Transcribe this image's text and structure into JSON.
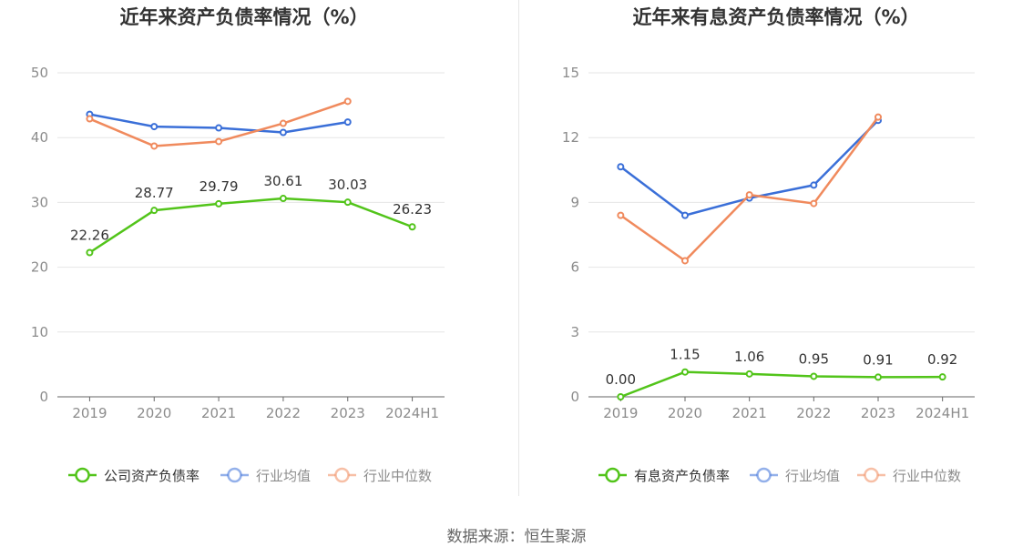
{
  "source": "数据来源：恒生聚源",
  "chart_data": [
    {
      "type": "line",
      "title": "近年来资产负债率情况（%）",
      "categories": [
        "2019",
        "2020",
        "2021",
        "2022",
        "2023",
        "2024H1"
      ],
      "ylim": [
        0,
        50
      ],
      "yticks": [
        0,
        10,
        20,
        30,
        40,
        50
      ],
      "grid": true,
      "legend_position": "bottom",
      "series": [
        {
          "name": "公司资产负债率",
          "color": "#52c41a",
          "values": [
            22.26,
            28.77,
            29.79,
            30.61,
            30.03,
            26.23
          ],
          "labels": [
            "22.26",
            "28.77",
            "29.79",
            "30.61",
            "30.03",
            "26.23"
          ]
        },
        {
          "name": "行业均值",
          "color": "#3a6fd8",
          "values": [
            43.6,
            41.7,
            41.5,
            40.8,
            42.4,
            null
          ]
        },
        {
          "name": "行业中位数",
          "color": "#f08a5d",
          "values": [
            42.9,
            38.7,
            39.4,
            42.2,
            45.6,
            null
          ]
        }
      ]
    },
    {
      "type": "line",
      "title": "近年来有息资产负债率情况（%）",
      "categories": [
        "2019",
        "2020",
        "2021",
        "2022",
        "2023",
        "2024H1"
      ],
      "ylim": [
        0,
        15
      ],
      "yticks": [
        0,
        3,
        6,
        9,
        12,
        15
      ],
      "grid": true,
      "legend_position": "bottom",
      "series": [
        {
          "name": "有息资产负债率",
          "color": "#52c41a",
          "values": [
            0.0,
            1.15,
            1.06,
            0.95,
            0.91,
            0.92
          ],
          "labels": [
            "0.00",
            "1.15",
            "1.06",
            "0.95",
            "0.91",
            "0.92"
          ]
        },
        {
          "name": "行业均值",
          "color": "#3a6fd8",
          "values": [
            10.65,
            8.4,
            9.2,
            9.8,
            12.8,
            null
          ]
        },
        {
          "name": "行业中位数",
          "color": "#f08a5d",
          "values": [
            8.4,
            6.3,
            9.35,
            8.95,
            12.95,
            null
          ]
        }
      ]
    }
  ]
}
